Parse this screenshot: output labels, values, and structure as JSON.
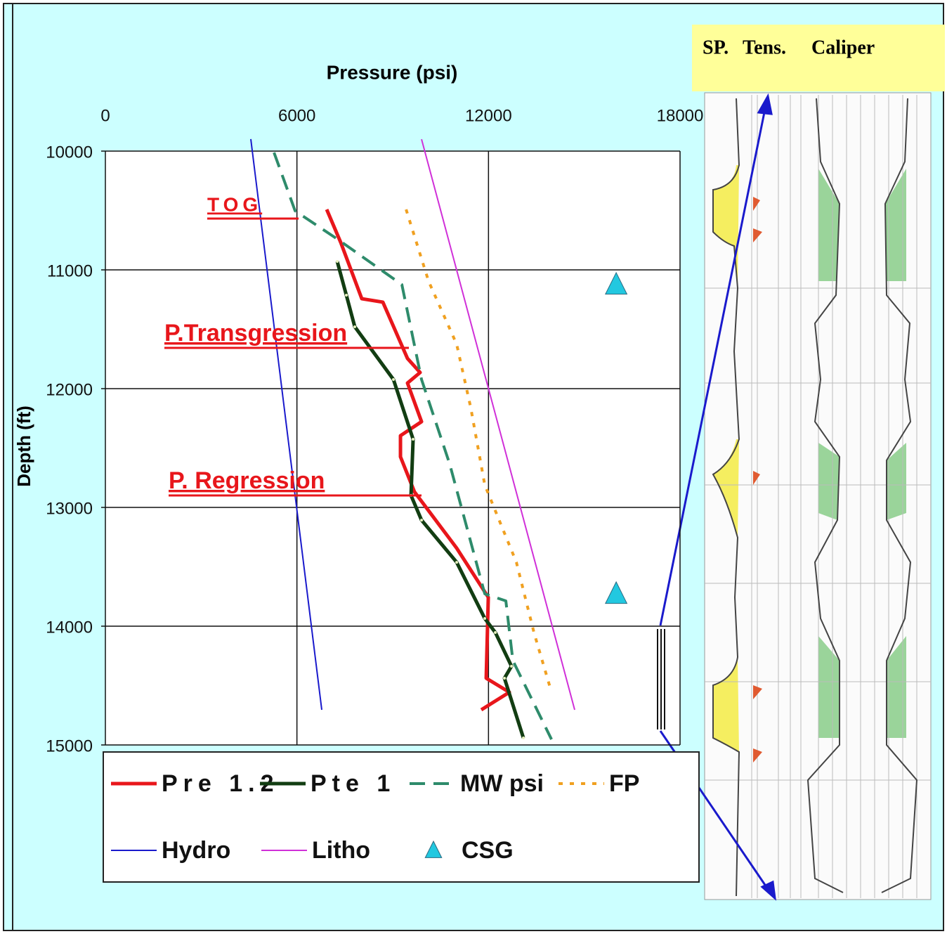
{
  "chart_data": {
    "type": "line",
    "title": "Pressure (psi)",
    "y_label": "Depth (ft)",
    "xlim": [
      0,
      18000
    ],
    "xticks": [
      0,
      6000,
      12000,
      18000
    ],
    "ylim": [
      10000,
      15000
    ],
    "yticks": [
      10000,
      11000,
      12000,
      13000,
      14000,
      15000
    ],
    "y_inverted": true,
    "grid": true,
    "series": [
      {
        "name": "Pre 1.2",
        "color": "#e8161b",
        "style": "solid",
        "line_width": 5,
        "x": [
          6932,
          7372,
          8032,
          8692,
          9463,
          9859,
          9463,
          9903,
          9243,
          9243,
          9683,
          11004,
          11994,
          11928,
          12654,
          11774
        ],
        "y": [
          10491,
          10769,
          11243,
          11272,
          11746,
          11864,
          11953,
          12278,
          12396,
          12574,
          12870,
          13343,
          13757,
          14438,
          14556,
          14704
        ]
      },
      {
        "name": "Pte 1",
        "color": "#123d12",
        "style": "solid",
        "line_width": 5,
        "marker": "dot",
        "x": [
          7262,
          7548,
          7812,
          9023,
          9639,
          9573,
          9903,
          11004,
          11884,
          12214,
          12720,
          12500,
          13094
        ],
        "y": [
          10929,
          11213,
          11479,
          11923,
          12426,
          12899,
          13107,
          13462,
          13935,
          14053,
          14337,
          14438,
          14941
        ]
      },
      {
        "name": "MW psi",
        "color": "#2e8b6b",
        "style": "dashed",
        "line_width": 4,
        "x": [
          5282,
          5942,
          7262,
          9287,
          9903,
          10783,
          11884,
          12544,
          12764,
          13974
        ],
        "y": [
          10012,
          10503,
          10740,
          11124,
          11923,
          12633,
          13728,
          13787,
          14290,
          14953
        ]
      },
      {
        "name": "FP",
        "color": "#f0a020",
        "style": "dotted",
        "line_width": 4,
        "x": [
          9419,
          10123,
          11004,
          11444,
          11884,
          12874,
          13424,
          13974
        ],
        "y": [
          10491,
          11095,
          11627,
          12160,
          12811,
          13462,
          14053,
          14556
        ]
      },
      {
        "name": "Hydro",
        "color": "#1a1acc",
        "style": "solid",
        "line_width": 2,
        "x": [
          4555,
          6778
        ],
        "y": [
          9899,
          14704
        ]
      },
      {
        "name": "Litho",
        "color": "#d030d8",
        "style": "solid",
        "line_width": 2,
        "x": [
          9903,
          14700
        ],
        "y": [
          9900,
          14704
        ]
      },
      {
        "name": "CSG",
        "color": "#22c8e0",
        "style": "none",
        "marker": "triangle",
        "x": [
          16000,
          16000
        ],
        "y": [
          11124,
          13728
        ]
      }
    ],
    "annotations": [
      "TOG",
      "P.Transgression",
      "P. Regression"
    ]
  },
  "log_panel": {
    "headers": [
      "SP.",
      "Tens.",
      "Caliper"
    ]
  }
}
